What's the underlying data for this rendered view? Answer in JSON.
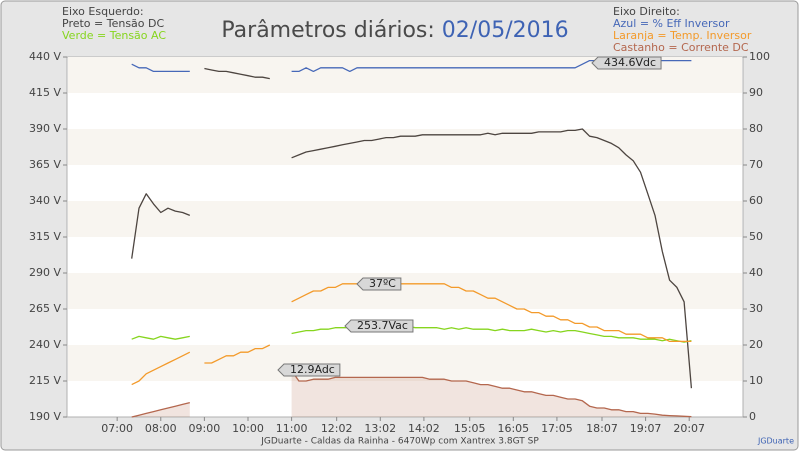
{
  "chart_data": {
    "type": "line",
    "title": "Parâmetros diários:",
    "subtitle": "02/05/2016",
    "left_axis_heading": "Eixo Esquerdo:",
    "right_axis_heading": "Eixo Direito:",
    "footer": "JGDuarte  -  Caldas da Rainha  -  6470Wp com Xantrex 3.8GT SP",
    "credit": "JGDuarte",
    "annotations": [
      "434.6Vdc",
      "37ºC",
      "253.7Vac",
      "12.9Adc"
    ],
    "xlim": [
      351,
      1281
    ],
    "xticks": [
      {
        "value": 420,
        "label": "07:00"
      },
      {
        "value": 480,
        "label": "08:00"
      },
      {
        "value": 540,
        "label": "09:00"
      },
      {
        "value": 600,
        "label": "10:00"
      },
      {
        "value": 660,
        "label": "11:00"
      },
      {
        "value": 722,
        "label": "12:02"
      },
      {
        "value": 782,
        "label": "13:02"
      },
      {
        "value": 842,
        "label": "14:02"
      },
      {
        "value": 905,
        "label": "15:05"
      },
      {
        "value": 965,
        "label": "16:05"
      },
      {
        "value": 1025,
        "label": "17:05"
      },
      {
        "value": 1087,
        "label": "18:07"
      },
      {
        "value": 1147,
        "label": "19:07"
      },
      {
        "value": 1207,
        "label": "20:07"
      }
    ],
    "ylim": [
      190,
      440
    ],
    "yticks": [
      {
        "value": 190,
        "label": "190 V"
      },
      {
        "value": 215,
        "label": "215 V"
      },
      {
        "value": 240,
        "label": "240 V"
      },
      {
        "value": 265,
        "label": "265 V"
      },
      {
        "value": 290,
        "label": "290 V"
      },
      {
        "value": 315,
        "label": "315 V"
      },
      {
        "value": 340,
        "label": "340 V"
      },
      {
        "value": 365,
        "label": "365 V"
      },
      {
        "value": 390,
        "label": "390 V"
      },
      {
        "value": 415,
        "label": "415 V"
      },
      {
        "value": 440,
        "label": "440 V"
      }
    ],
    "y2lim": [
      0,
      100
    ],
    "y2ticks": [
      0,
      10,
      20,
      30,
      40,
      50,
      60,
      70,
      80,
      90,
      100
    ],
    "x": [
      430,
      440,
      450,
      460,
      470,
      480,
      490,
      500,
      510,
      520,
      530,
      540,
      550,
      560,
      570,
      580,
      590,
      600,
      610,
      620,
      630,
      640,
      650,
      660,
      670,
      680,
      690,
      700,
      710,
      720,
      730,
      740,
      750,
      760,
      770,
      780,
      790,
      800,
      810,
      820,
      830,
      840,
      850,
      860,
      870,
      880,
      890,
      900,
      910,
      920,
      930,
      940,
      950,
      960,
      970,
      980,
      990,
      1000,
      1010,
      1020,
      1030,
      1040,
      1050,
      1060,
      1070,
      1080,
      1090,
      1100,
      1110,
      1120,
      1130,
      1140,
      1150,
      1160,
      1170,
      1180,
      1190,
      1200,
      1210,
      1220
    ],
    "series": [
      {
        "name": "Preto = Tensão DC",
        "color": "#4d4540",
        "axis": "y",
        "values": [
          null,
          300,
          335,
          345,
          338,
          332,
          335,
          333,
          332,
          330,
          null,
          432,
          431,
          430,
          430,
          429,
          428,
          427,
          426,
          426,
          425,
          null,
          null,
          370,
          372,
          374,
          375,
          376,
          377,
          378,
          379,
          380,
          381,
          382,
          382,
          383,
          384,
          384,
          385,
          385,
          385,
          386,
          386,
          386,
          386,
          386,
          386,
          386,
          386,
          386,
          387,
          386,
          387,
          387,
          387,
          387,
          387,
          388,
          388,
          388,
          388,
          389,
          389,
          390,
          385,
          384,
          382,
          380,
          377,
          372,
          368,
          360,
          345,
          330,
          305,
          285,
          280,
          270,
          210,
          null
        ]
      },
      {
        "name": "Verde = Tensão AC",
        "color": "#86d51e",
        "axis": "y",
        "values": [
          null,
          244,
          246,
          245,
          244,
          246,
          245,
          244,
          245,
          246,
          null,
          null,
          null,
          null,
          null,
          null,
          null,
          null,
          null,
          null,
          null,
          null,
          null,
          248,
          249,
          250,
          250,
          251,
          251,
          252,
          252,
          252,
          253,
          253,
          252,
          253,
          252,
          252,
          252,
          253,
          252,
          252,
          252,
          252,
          251,
          252,
          251,
          252,
          251,
          251,
          251,
          250,
          251,
          250,
          250,
          250,
          251,
          250,
          249,
          250,
          249,
          250,
          250,
          249,
          248,
          247,
          246,
          246,
          245,
          245,
          245,
          244,
          244,
          244,
          243,
          244,
          243,
          242,
          243,
          null
        ]
      },
      {
        "name": "Azul = % Eff Inversor",
        "color": "#4668b8",
        "axis": "y2",
        "values": [
          null,
          98,
          97,
          97,
          96,
          96,
          96,
          96,
          96,
          96,
          null,
          null,
          null,
          null,
          null,
          null,
          null,
          null,
          null,
          null,
          null,
          null,
          null,
          96,
          96,
          97,
          96,
          97,
          97,
          97,
          97,
          96,
          97,
          97,
          97,
          97,
          97,
          97,
          97,
          97,
          97,
          97,
          97,
          97,
          97,
          97,
          97,
          97,
          97,
          97,
          97,
          97,
          97,
          97,
          97,
          97,
          97,
          97,
          97,
          97,
          97,
          97,
          97,
          98,
          99,
          99,
          99,
          99,
          99,
          99,
          99,
          99,
          99,
          99,
          99,
          99,
          99,
          99,
          99,
          null
        ]
      },
      {
        "name": "Laranja = Temp. Inversor",
        "color": "#f39a2a",
        "axis": "y2",
        "values": [
          null,
          9,
          10,
          12,
          13,
          14,
          15,
          16,
          17,
          18,
          null,
          15,
          15,
          16,
          17,
          17,
          18,
          18,
          19,
          19,
          20,
          null,
          null,
          32,
          33,
          34,
          35,
          35,
          36,
          36,
          37,
          37,
          37,
          37,
          37,
          37,
          37,
          37,
          37,
          37,
          37,
          37,
          37,
          37,
          37,
          36,
          36,
          35,
          35,
          34,
          33,
          33,
          32,
          31,
          30,
          30,
          29,
          29,
          28,
          28,
          27,
          27,
          26,
          26,
          25,
          25,
          24,
          24,
          24,
          23,
          23,
          23,
          22,
          22,
          22,
          21,
          21,
          21,
          21,
          null
        ]
      },
      {
        "name": "Castanho = Corrente DC",
        "color": "#b4674e",
        "axis": "y2",
        "values": [
          null,
          0,
          0.5,
          1,
          1.5,
          2,
          2.5,
          3,
          3.5,
          4,
          null,
          null,
          null,
          null,
          null,
          null,
          null,
          null,
          null,
          null,
          null,
          null,
          null,
          12.9,
          10,
          10,
          10.5,
          10.5,
          10.5,
          11,
          11,
          11,
          11,
          11,
          11,
          11,
          11,
          11,
          11,
          11,
          11,
          11,
          10.5,
          10.5,
          10.5,
          10,
          10,
          10,
          9.5,
          9,
          9,
          8.5,
          8,
          8,
          7.5,
          7,
          7,
          6.5,
          6,
          6,
          5.5,
          5,
          5,
          4.5,
          3,
          2.5,
          2.5,
          2,
          2,
          1.5,
          1.5,
          1,
          1,
          0.8,
          0.5,
          0.4,
          0.3,
          0.2,
          0.1,
          null
        ]
      }
    ]
  }
}
